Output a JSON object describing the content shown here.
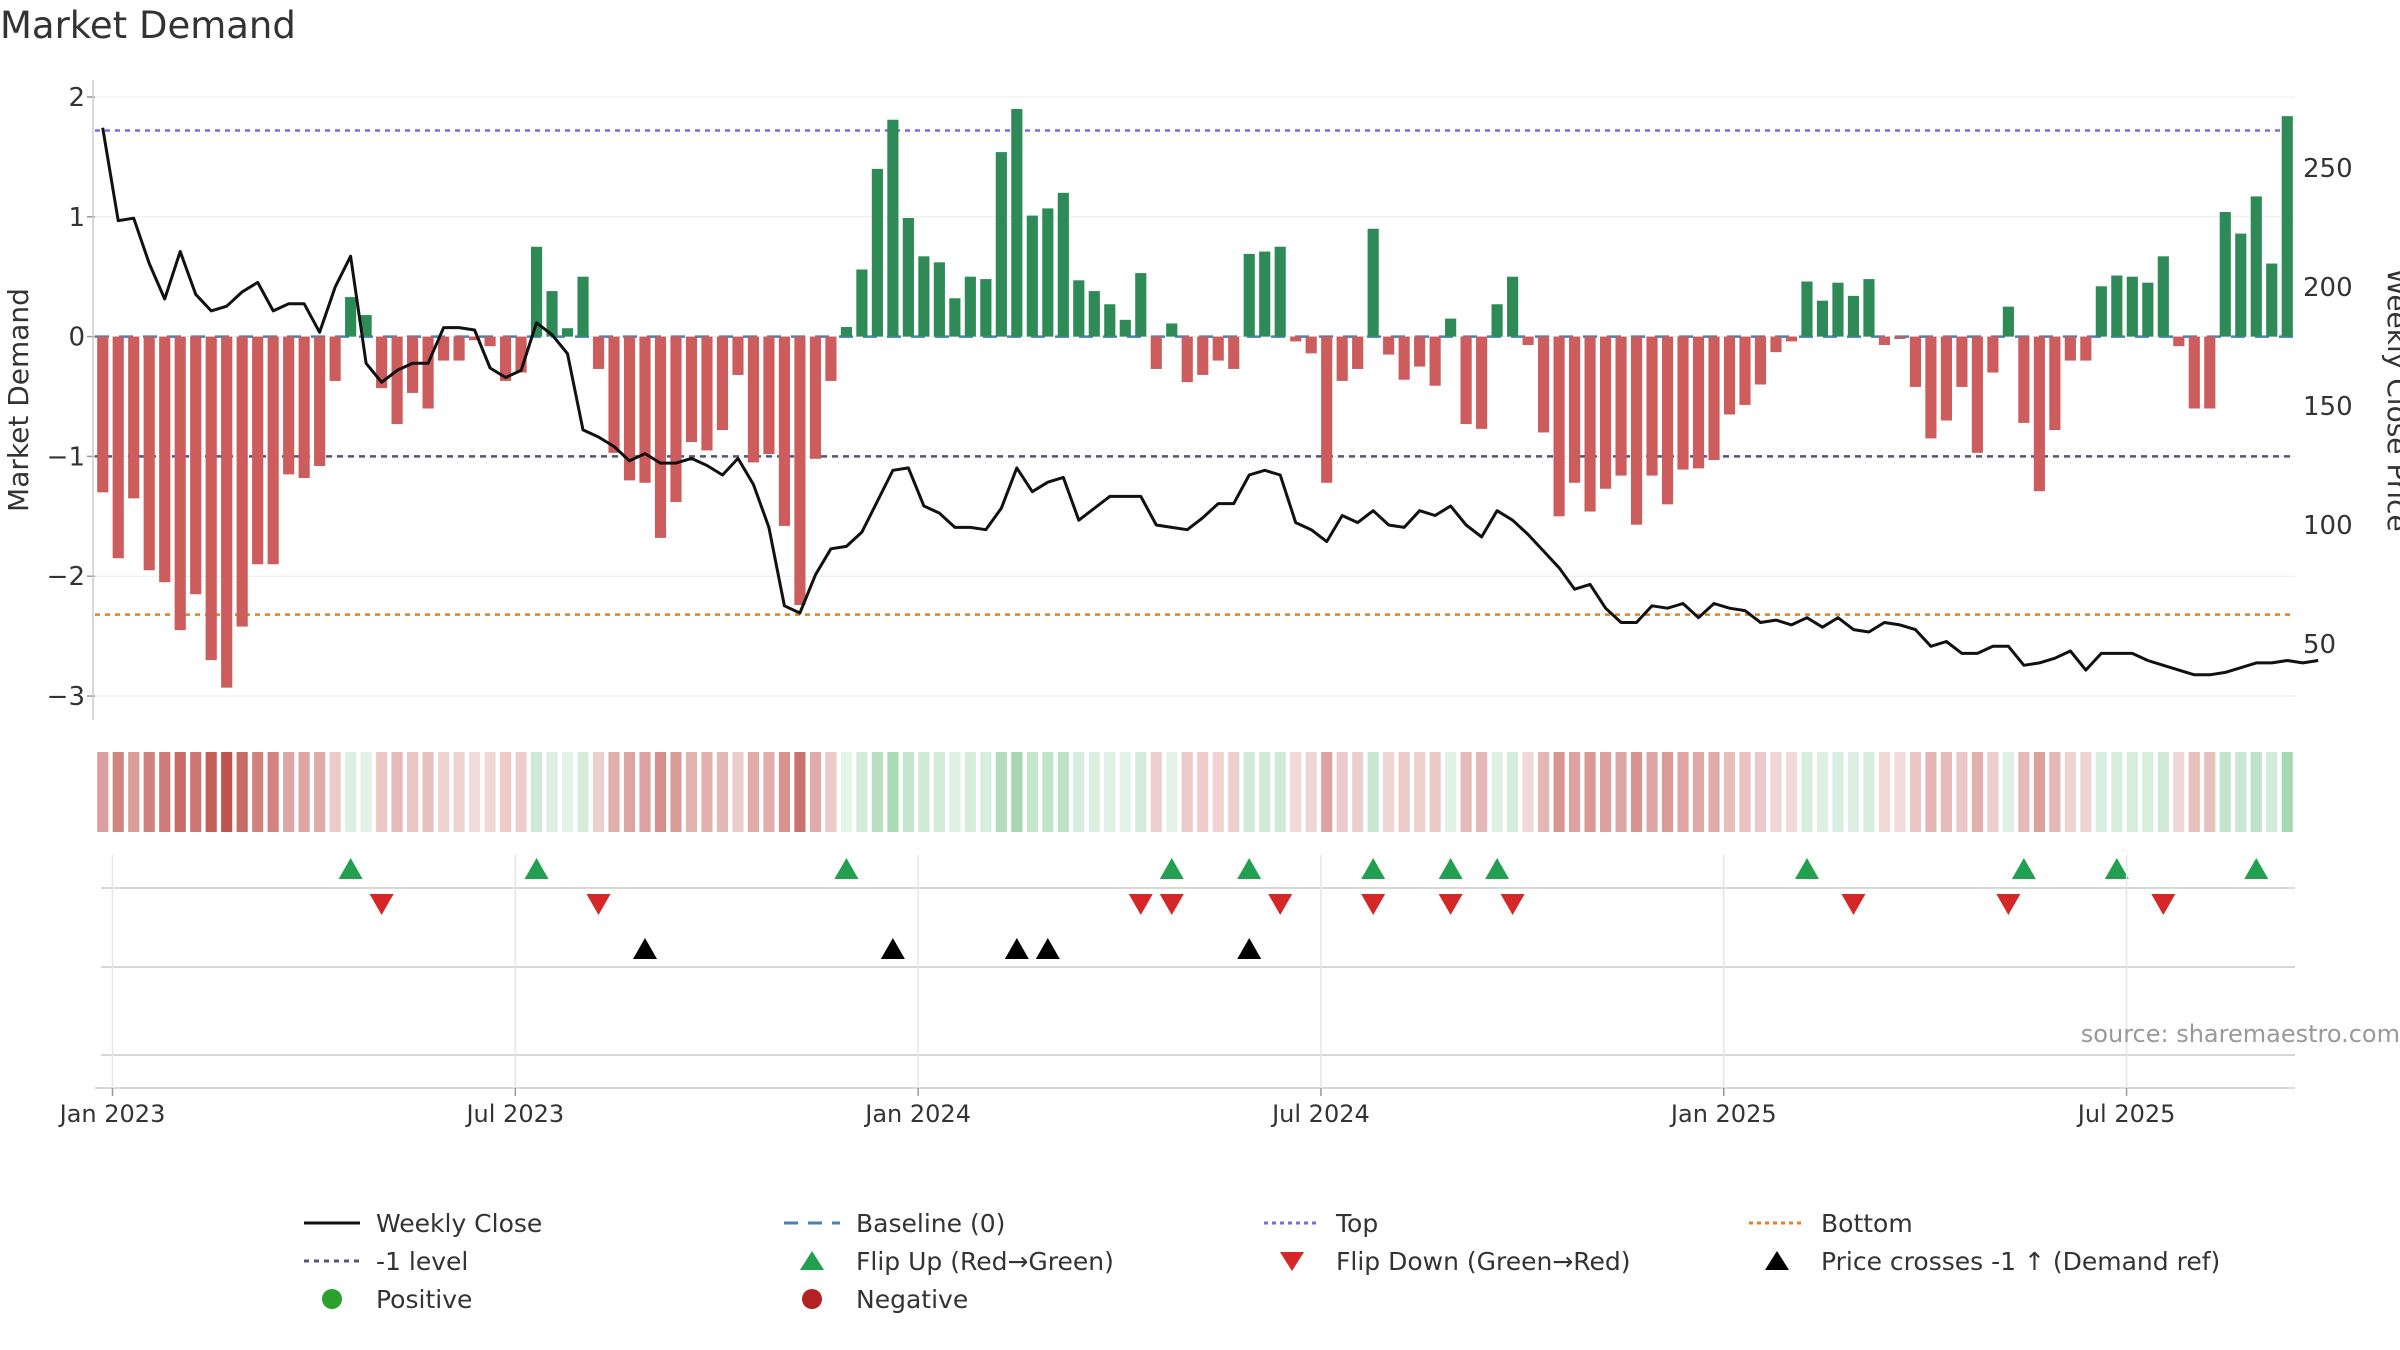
{
  "chart_data": {
    "type": "bar",
    "title": "Market Demand",
    "ylabel_left": "Market Demand",
    "ylabel_right": "Weekly Close Price",
    "left_ylim": [
      -3.2,
      2.1
    ],
    "left_yticks": [
      2,
      1,
      0,
      -1,
      -2,
      -3
    ],
    "right_ylim": [
      18,
      285
    ],
    "right_yticks": [
      250,
      200,
      150,
      100,
      50
    ],
    "x_ticks": [
      {
        "label": "Jan 2023",
        "week": 1
      },
      {
        "label": "Jul 2023",
        "week": 27
      },
      {
        "label": "Jan 2024",
        "week": 53
      },
      {
        "label": "Jul 2024",
        "week": 79
      },
      {
        "label": "Jan 2025",
        "week": 105
      },
      {
        "label": "Jul 2025",
        "week": 131
      }
    ],
    "reference_lines": {
      "top": 1.72,
      "level_minus1": -1,
      "bottom": -2.32,
      "baseline": 0
    },
    "demand": [
      -1.3,
      -1.85,
      -1.35,
      -1.95,
      -2.05,
      -2.45,
      -2.15,
      -2.7,
      -2.93,
      -2.42,
      -1.9,
      -1.9,
      -1.15,
      -1.18,
      -1.08,
      -0.37,
      0.33,
      0.18,
      -0.43,
      -0.73,
      -0.47,
      -0.6,
      -0.2,
      -0.2,
      -0.03,
      -0.08,
      -0.37,
      -0.3,
      0.75,
      0.38,
      0.07,
      0.5,
      -0.27,
      -0.97,
      -1.2,
      -1.22,
      -1.68,
      -1.38,
      -0.88,
      -0.95,
      -0.78,
      -0.32,
      -1.05,
      -0.98,
      -1.58,
      -2.24,
      -1.02,
      -0.37,
      0.08,
      0.56,
      1.4,
      1.81,
      0.99,
      0.67,
      0.62,
      0.32,
      0.5,
      0.48,
      1.54,
      1.9,
      1.01,
      1.07,
      1.2,
      0.47,
      0.38,
      0.27,
      0.14,
      0.53,
      -0.27,
      0.11,
      -0.38,
      -0.32,
      -0.2,
      -0.27,
      0.69,
      0.71,
      0.75,
      -0.04,
      -0.14,
      -1.22,
      -0.37,
      -0.27,
      0.9,
      -0.15,
      -0.36,
      -0.25,
      -0.41,
      0.15,
      -0.73,
      -0.77,
      0.27,
      0.5,
      -0.07,
      -0.8,
      -1.5,
      -1.22,
      -1.46,
      -1.27,
      -1.16,
      -1.57,
      -1.16,
      -1.4,
      -1.11,
      -1.1,
      -1.03,
      -0.65,
      -0.57,
      -0.4,
      -0.13,
      -0.04,
      0.46,
      0.3,
      0.45,
      0.34,
      0.48,
      -0.07,
      -0.02,
      -0.42,
      -0.85,
      -0.7,
      -0.42,
      -0.97,
      -0.3,
      0.25,
      -0.72,
      -1.29,
      -0.78,
      -0.2,
      -0.2,
      0.42,
      0.51,
      0.5,
      0.45,
      0.67,
      -0.08,
      -0.6,
      -0.6,
      1.04,
      0.86,
      1.17,
      0.61,
      1.84
    ],
    "weekly_close": [
      267,
      228,
      229,
      210,
      195,
      215,
      197,
      190,
      192,
      198,
      202,
      190,
      193,
      193,
      181,
      200,
      213,
      168,
      160,
      165,
      168,
      168,
      183,
      183,
      182,
      166,
      162,
      165,
      185,
      180,
      172,
      140,
      137,
      133,
      127,
      130,
      126,
      126,
      128,
      125,
      121,
      128,
      117,
      99,
      66,
      63,
      79,
      90,
      91,
      97,
      110,
      123,
      124,
      108,
      105,
      99,
      99,
      98,
      107,
      124,
      114,
      118,
      120,
      102,
      107,
      112,
      112,
      112,
      100,
      99,
      98,
      103,
      109,
      109,
      121,
      123,
      121,
      101,
      98,
      93,
      104,
      101,
      106,
      100,
      99,
      106,
      104,
      108,
      100,
      95,
      106,
      102,
      96,
      89,
      82,
      73,
      75,
      65,
      59,
      59,
      66,
      65,
      67,
      61,
      67,
      65,
      64,
      59,
      60,
      58,
      61,
      57,
      61,
      56,
      55,
      59,
      58,
      56,
      49,
      51,
      46,
      46,
      49,
      49,
      41,
      42,
      44,
      47,
      39,
      46,
      46,
      46,
      43,
      41,
      39,
      37,
      37,
      38,
      40,
      42,
      42,
      43,
      42,
      43
    ],
    "color_strip_source": "demand",
    "flip_up_weeks": [
      16,
      28,
      48,
      69,
      74,
      82,
      87,
      90,
      110,
      124,
      130,
      139
    ],
    "flip_down_weeks": [
      18,
      32,
      67,
      69,
      76,
      82,
      87,
      91,
      113,
      123,
      133
    ],
    "price_cross_weeks": [
      35,
      51,
      59,
      61,
      74
    ],
    "series_names": [
      "Weekly Close",
      "-1 level",
      "Positive",
      "Baseline (0)",
      "Flip Up (Red→Green)",
      "Negative",
      "Top",
      "Flip Down (Green→Red)",
      "Bottom",
      "Price crosses -1 ↑ (Demand ref)"
    ]
  },
  "legend": [
    {
      "key": "weekly-close",
      "label": "Weekly Close"
    },
    {
      "key": "baseline",
      "label": "Baseline (0)"
    },
    {
      "key": "top",
      "label": "Top"
    },
    {
      "key": "bottom",
      "label": "Bottom"
    },
    {
      "key": "level-minus-1",
      "label": "-1 level"
    },
    {
      "key": "flip-up",
      "label": "Flip Up (Red→Green)"
    },
    {
      "key": "flip-down",
      "label": "Flip Down (Green→Red)"
    },
    {
      "key": "price-cross",
      "label": "Price crosses -1 ↑ (Demand ref)"
    },
    {
      "key": "positive",
      "label": "Positive"
    },
    {
      "key": "negative",
      "label": "Negative"
    }
  ],
  "source": "source: sharemaestro.com",
  "colors": {
    "positive_bar": "#2e8b57",
    "negative_bar": "#cd5c5c",
    "price_line": "#111111",
    "baseline": "#4682b4",
    "top_line": "#7b68ee",
    "level_line": "#555577",
    "bottom_line": "#e08020",
    "flip_up": "#22a050",
    "flip_down": "#d62728",
    "price_cross": "#000000",
    "positive_dot": "#2ca02c",
    "negative_dot": "#b22222"
  }
}
